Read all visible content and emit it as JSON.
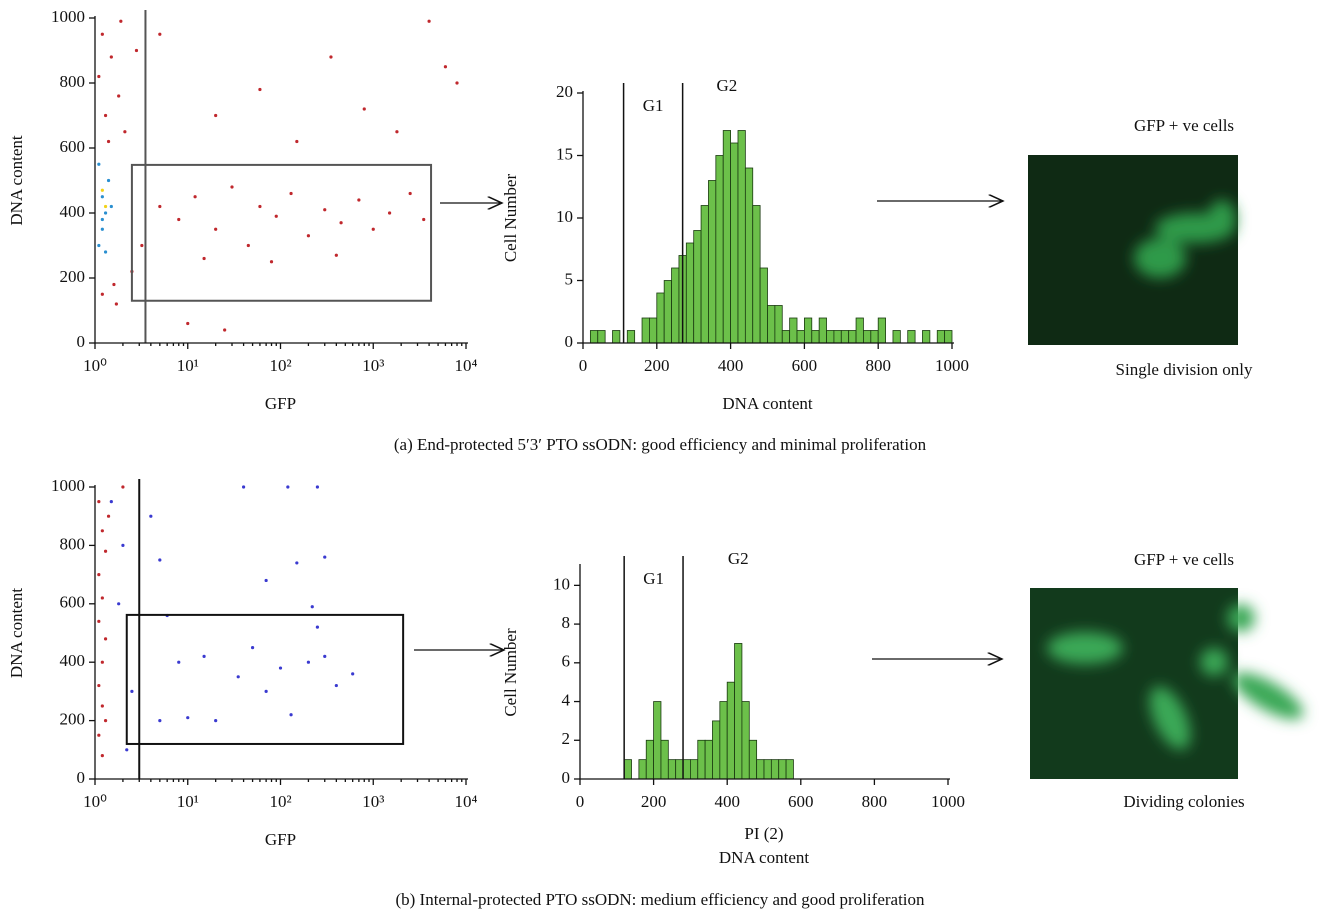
{
  "chart_data": [
    {
      "type": "scatter",
      "xlabel": "GFP",
      "ylabel": "DNA content",
      "xscale": "log",
      "xlim": [
        1,
        10000
      ],
      "ylim": [
        0,
        1000
      ],
      "xticks": [
        {
          "value": 1,
          "label": "10⁰"
        },
        {
          "value": 10,
          "label": "10¹"
        },
        {
          "value": 100,
          "label": "10²"
        },
        {
          "value": 1000,
          "label": "10³"
        },
        {
          "value": 10000,
          "label": "10⁴"
        }
      ],
      "yticks": [
        0,
        200,
        400,
        600,
        800,
        1000
      ],
      "gate_x": 3.5,
      "gate_box": {
        "x": [
          2.5,
          4200
        ],
        "y": [
          130,
          548
        ]
      },
      "gate_color": "#555555",
      "series": [
        {
          "color": "#c0282d",
          "x": [
            1.2,
            1.5,
            1.1,
            1.8,
            1.3,
            2.1,
            1.4,
            1.6,
            1.2,
            2.5,
            1.9,
            2.8,
            1.7,
            3.2,
            5,
            8,
            12,
            20,
            30,
            45,
            60,
            90,
            130,
            200,
            300,
            450,
            700,
            1000,
            1500,
            2500,
            3500,
            15,
            80,
            400,
            5,
            20,
            60,
            150,
            350,
            800,
            1800,
            4000,
            6000,
            8000,
            25,
            10
          ],
          "y": [
            950,
            880,
            820,
            760,
            700,
            650,
            620,
            180,
            150,
            220,
            990,
            900,
            120,
            300,
            420,
            380,
            450,
            350,
            480,
            300,
            420,
            390,
            460,
            330,
            410,
            370,
            440,
            350,
            400,
            460,
            380,
            260,
            250,
            270,
            950,
            700,
            780,
            620,
            880,
            720,
            650,
            990,
            850,
            800,
            40,
            60
          ]
        },
        {
          "color": "#2a8fd0",
          "x": [
            1.1,
            1.2,
            1.3,
            1.2,
            1.4,
            1.1,
            1.3,
            1.5,
            1.2
          ],
          "y": [
            300,
            350,
            400,
            450,
            500,
            550,
            280,
            420,
            380
          ]
        },
        {
          "color": "#f2d21b",
          "x": [
            1.3,
            1.2
          ],
          "y": [
            420,
            470
          ]
        }
      ]
    },
    {
      "type": "histogram",
      "xlabel": "DNA content",
      "ylabel": "Cell Number",
      "xlim": [
        0,
        1000
      ],
      "ylim": [
        0,
        20
      ],
      "xticks": [
        0,
        200,
        400,
        600,
        800,
        1000
      ],
      "yticks": [
        0,
        5,
        10,
        15,
        20
      ],
      "color": "#6cc04a",
      "gates": [
        110,
        270
      ],
      "gate_labels": [
        "G1",
        "G2"
      ],
      "bins": [
        0,
        20,
        40,
        60,
        80,
        100,
        120,
        140,
        160,
        180,
        200,
        220,
        240,
        260,
        280,
        300,
        320,
        340,
        360,
        380,
        400,
        420,
        440,
        460,
        480,
        500,
        520,
        540,
        560,
        580,
        600,
        620,
        640,
        660,
        680,
        700,
        720,
        740,
        760,
        780,
        800,
        820,
        840,
        860,
        880,
        900,
        920,
        940,
        960,
        980,
        1000
      ],
      "counts": [
        0,
        1,
        1,
        0,
        1,
        0,
        1,
        0,
        2,
        2,
        4,
        5,
        6,
        7,
        8,
        9,
        11,
        13,
        15,
        17,
        16,
        17,
        14,
        11,
        6,
        3,
        3,
        1,
        2,
        1,
        2,
        1,
        2,
        1,
        1,
        1,
        1,
        2,
        1,
        1,
        2,
        0,
        1,
        0,
        1,
        0,
        1,
        0,
        1,
        1
      ]
    },
    {
      "type": "scatter",
      "xlabel": "GFP",
      "ylabel": "DNA content",
      "xscale": "log",
      "xlim": [
        1,
        10000
      ],
      "ylim": [
        0,
        1000
      ],
      "xticks": [
        {
          "value": 1,
          "label": "10⁰"
        },
        {
          "value": 10,
          "label": "10¹"
        },
        {
          "value": 100,
          "label": "10²"
        },
        {
          "value": 1000,
          "label": "10³"
        },
        {
          "value": 10000,
          "label": "10⁴"
        }
      ],
      "yticks": [
        0,
        200,
        400,
        600,
        800,
        1000
      ],
      "gate_x": 3,
      "gate_box": {
        "x": [
          2.2,
          2100
        ],
        "y": [
          120,
          562
        ]
      },
      "gate_color": "#111111",
      "series": [
        {
          "color": "#c0282d",
          "x": [
            1.1,
            1.2,
            1.3,
            1.1,
            1.2,
            1.1,
            1.3,
            1.2,
            1.1,
            1.2,
            1.3,
            1.1,
            1.2,
            2,
            1.4
          ],
          "y": [
            950,
            850,
            780,
            700,
            620,
            540,
            480,
            400,
            320,
            250,
            200,
            150,
            80,
            1000,
            900
          ]
        },
        {
          "color": "#3a3ad0",
          "x": [
            1.5,
            2,
            1.8,
            2.5,
            2.2,
            4,
            5,
            6,
            8,
            15,
            20,
            35,
            50,
            70,
            100,
            130,
            200,
            250,
            300,
            400,
            600,
            70,
            150,
            300,
            220,
            40,
            120,
            250,
            5,
            10
          ],
          "y": [
            950,
            800,
            600,
            300,
            100,
            900,
            750,
            560,
            400,
            420,
            200,
            350,
            450,
            300,
            380,
            220,
            400,
            520,
            420,
            320,
            360,
            680,
            740,
            760,
            590,
            1000,
            1000,
            1000,
            200,
            210
          ]
        }
      ]
    },
    {
      "type": "histogram",
      "xlabel": "DNA content",
      "xlabel_top": "PI (2)",
      "ylabel": "Cell Number",
      "xlim": [
        0,
        1000
      ],
      "ylim": [
        0,
        11
      ],
      "xticks": [
        0,
        200,
        400,
        600,
        800,
        1000
      ],
      "yticks": [
        0,
        2,
        4,
        6,
        8,
        10
      ],
      "color": "#6cc04a",
      "gates": [
        120,
        280
      ],
      "gate_labels": [
        "G1",
        "G2"
      ],
      "bins": [
        0,
        20,
        40,
        60,
        80,
        100,
        120,
        140,
        160,
        180,
        200,
        220,
        240,
        260,
        280,
        300,
        320,
        340,
        360,
        380,
        400,
        420,
        440,
        460,
        480,
        500,
        520,
        540,
        560,
        580,
        600,
        620,
        640,
        660,
        680,
        700,
        720,
        740,
        760,
        780,
        800,
        820,
        840,
        860,
        880,
        900,
        920,
        940,
        960,
        980,
        1000
      ],
      "counts": [
        0,
        0,
        0,
        0,
        0,
        0,
        1,
        0,
        1,
        2,
        4,
        2,
        1,
        1,
        1,
        1,
        2,
        2,
        3,
        4,
        5,
        7,
        4,
        2,
        1,
        1,
        1,
        1,
        1,
        0,
        0,
        0,
        0,
        0,
        0,
        0,
        0,
        0,
        0,
        0,
        0,
        0,
        0,
        0,
        0,
        0,
        0,
        0,
        0,
        0
      ]
    }
  ],
  "figure": {
    "rows": [
      {
        "image_title": "GFP + ve cells",
        "image_caption": "Single division only",
        "caption": "(a)  End-protected 5′3′ PTO ssODN: good efficiency and minimal proliferation"
      },
      {
        "image_title": "GFP + ve cells",
        "image_caption": "Dividing colonies",
        "caption": "(b)  Internal-protected PTO ssODN: medium efficiency and good proliferation"
      }
    ]
  }
}
